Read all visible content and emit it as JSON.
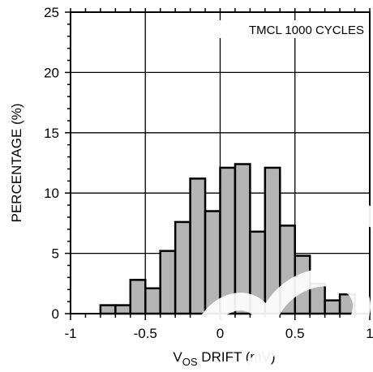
{
  "chart_data": {
    "type": "bar",
    "annotation": "TMCL 1000 CYCLES",
    "xlabel": {
      "prefix": "V",
      "subscript": "OS",
      "suffix": " DRIFT (mV)"
    },
    "ylabel": "PERCENTAGE (%)",
    "xlim": [
      -1,
      1
    ],
    "ylim": [
      0,
      25
    ],
    "xticks": [
      "-1",
      "-0.5",
      "0",
      "0.5",
      "1"
    ],
    "xtick_values": [
      -1,
      -0.5,
      0,
      0.5,
      1
    ],
    "yticks": [
      "0",
      "5",
      "10",
      "15",
      "20",
      "25"
    ],
    "ytick_values": [
      0,
      5,
      10,
      15,
      20,
      25
    ],
    "grid": true,
    "bin_width": 0.1,
    "bins": [
      {
        "x": -0.8,
        "value": 0.7
      },
      {
        "x": -0.7,
        "value": 0.7
      },
      {
        "x": -0.6,
        "value": 2.8
      },
      {
        "x": -0.5,
        "value": 2.1
      },
      {
        "x": -0.4,
        "value": 5.2
      },
      {
        "x": -0.3,
        "value": 7.6
      },
      {
        "x": -0.2,
        "value": 11.2
      },
      {
        "x": -0.1,
        "value": 8.5
      },
      {
        "x": 0.0,
        "value": 12.1
      },
      {
        "x": 0.1,
        "value": 12.4
      },
      {
        "x": 0.2,
        "value": 6.8
      },
      {
        "x": 0.3,
        "value": 12.1
      },
      {
        "x": 0.4,
        "value": 7.3
      },
      {
        "x": 0.5,
        "value": 4.8
      },
      {
        "x": 0.6,
        "value": 2.5
      },
      {
        "x": 0.7,
        "value": 1.1
      },
      {
        "x": 0.8,
        "value": 1.6
      }
    ],
    "bar_fill": "#b4b4b4",
    "bar_stroke": "#000000"
  }
}
